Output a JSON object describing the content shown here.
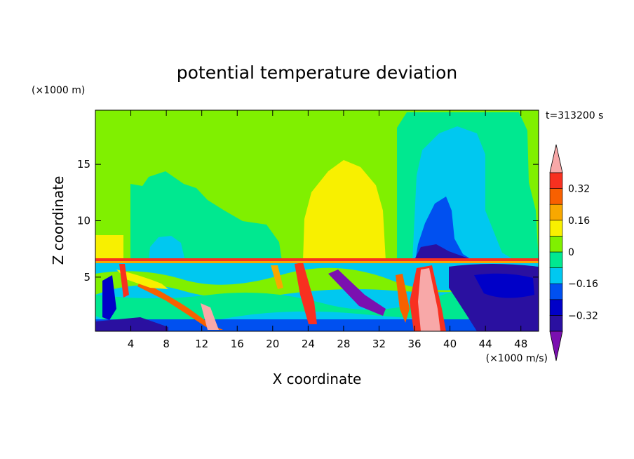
{
  "chart_data": {
    "type": "heatmap",
    "title": "potential temperature deviation",
    "xlabel": "X coordinate",
    "ylabel": "Z coordinate",
    "x_units": "(×1000 m/s)",
    "y_units": "(×1000 m)",
    "time_label": "t=313200 s",
    "xlim": [
      0,
      50
    ],
    "ylim": [
      0.2,
      19.8
    ],
    "x_ticks": [
      4,
      8,
      12,
      16,
      20,
      24,
      28,
      32,
      36,
      40,
      44,
      48
    ],
    "y_ticks": [
      5,
      10,
      15
    ],
    "colorbar": {
      "levels": [
        -0.4,
        -0.32,
        -0.24,
        -0.16,
        -0.08,
        0,
        0.08,
        0.16,
        0.24,
        0.32,
        0.4
      ],
      "labeled_levels": [
        0.32,
        0.16,
        0,
        -0.16,
        -0.32
      ],
      "colors": [
        "#7b10b0",
        "#2a10a0",
        "#0000c8",
        "#0050f0",
        "#00c8f0",
        "#00e890",
        "#80f000",
        "#f8f000",
        "#f8a800",
        "#f86000",
        "#f83020",
        "#f8a8a8"
      ]
    },
    "regions": [
      {
        "name": "Upper-right cyan dome (cool)",
        "x": [
          34.5,
          49.5
        ],
        "y": [
          6.5,
          19.5
        ],
        "value": -0.1
      },
      {
        "name": "Blue core above tropopause",
        "x": [
          36.5,
          41.5
        ],
        "y": [
          6.5,
          12.2
        ],
        "value": -0.2
      },
      {
        "name": "Yellow warm dome",
        "x": [
          23,
          33
        ],
        "y": [
          6.5,
          15.5
        ],
        "value": 0.15
      },
      {
        "name": "Green-teal region left",
        "x": [
          3.5,
          20
        ],
        "y": [
          6.5,
          14.5
        ],
        "value": 0.03
      },
      {
        "name": "Cyan bubble",
        "x": [
          6,
          10
        ],
        "y": [
          6.5,
          8.5
        ],
        "value": -0.08
      },
      {
        "name": "Dark purple surface pool",
        "x": [
          39,
          49
        ],
        "y": [
          0.2,
          6.4
        ],
        "value": -0.35
      },
      {
        "name": "Pink warm plume",
        "x": [
          36,
          39.5
        ],
        "y": [
          0.2,
          6.4
        ],
        "value": 0.38
      }
    ]
  }
}
